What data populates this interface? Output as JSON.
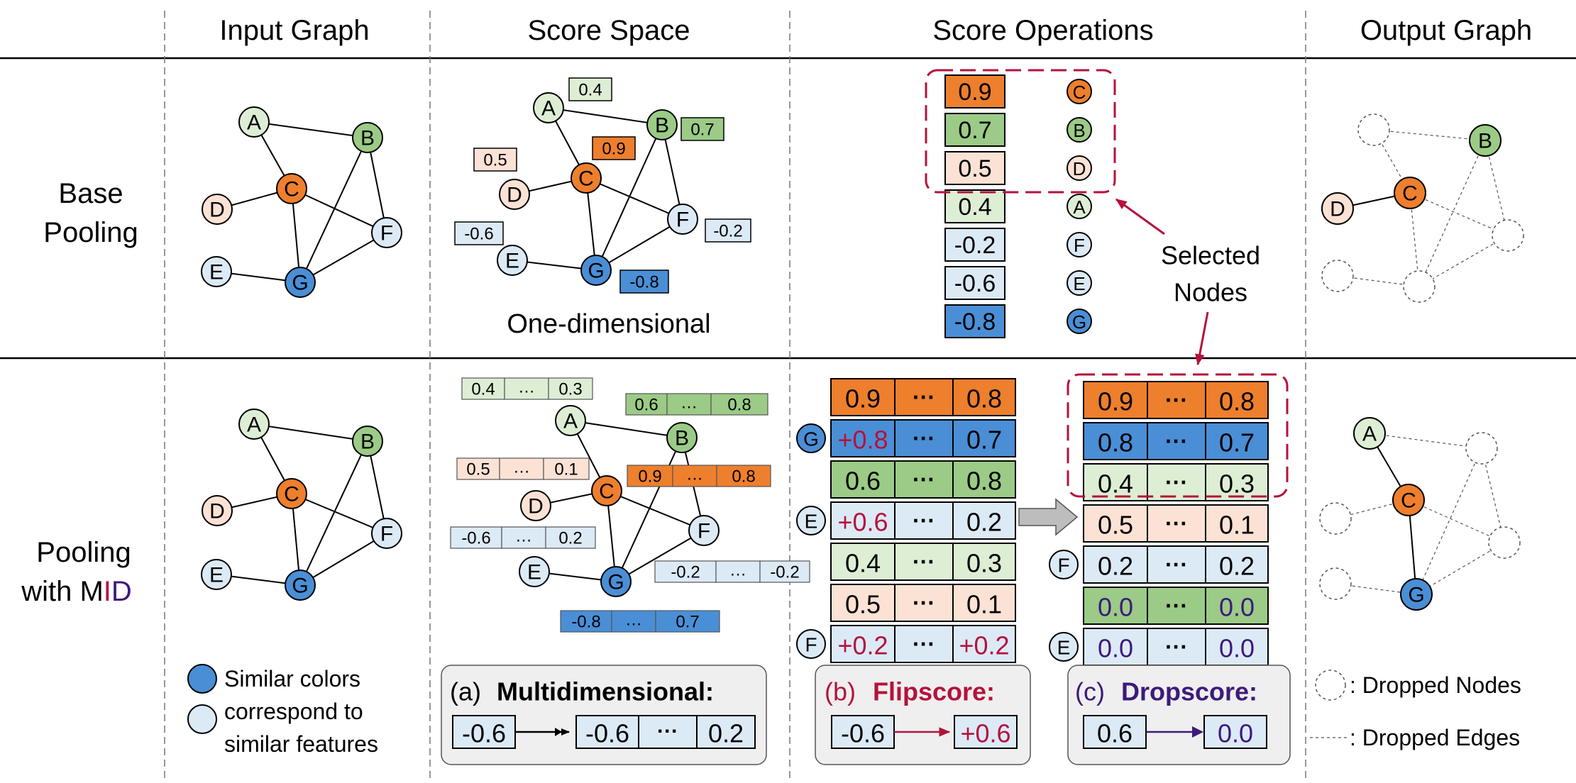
{
  "colors": {
    "orange": "#EE7F2D",
    "green": "#9BCB86",
    "light_green": "#DDEED5",
    "peach": "#FBE2D4",
    "light_blue": "#DCEAF6",
    "blue": "#4A8ED6",
    "flip_red": "#B5123B",
    "drop_purple": "#3D1A7A",
    "selection_red": "#B5123B"
  },
  "headers": {
    "input_graph": "Input Graph",
    "score_space": "Score Space",
    "score_operations": "Score Operations",
    "output_graph": "Output Graph"
  },
  "rows": {
    "base": {
      "line1": "Base",
      "line2": "Pooling"
    },
    "mid": {
      "line1": "Pooling",
      "line2_prefix": "with M",
      "line2_I": "I",
      "line2_D": "D"
    }
  },
  "node_labels": {
    "A": "A",
    "B": "B",
    "C": "C",
    "D": "D",
    "E": "E",
    "F": "F",
    "G": "G"
  },
  "base_scores": {
    "A": "0.4",
    "B": "0.7",
    "C": "0.9",
    "D": "0.5",
    "E": "-0.6",
    "F": "-0.2",
    "G": "-0.8"
  },
  "one_dimensional": "One-dimensional",
  "base_ranked": [
    {
      "score": "0.9",
      "node": "C"
    },
    {
      "score": "0.7",
      "node": "B"
    },
    {
      "score": "0.5",
      "node": "D"
    },
    {
      "score": "0.4",
      "node": "A"
    },
    {
      "score": "-0.2",
      "node": "F"
    },
    {
      "score": "-0.6",
      "node": "E"
    },
    {
      "score": "-0.8",
      "node": "G"
    }
  ],
  "selected_nodes": {
    "line1": "Selected",
    "line2": "Nodes"
  },
  "ellipsis": "…",
  "dots": "···",
  "multi_scores": {
    "A": [
      "0.4",
      "0.3"
    ],
    "B": [
      "0.6",
      "0.8"
    ],
    "D": [
      "0.5",
      "0.1"
    ],
    "C": [
      "0.9",
      "0.8"
    ],
    "E": [
      "-0.6",
      "0.2"
    ],
    "F": [
      "-0.2",
      "-0.2"
    ],
    "G": [
      "-0.8",
      "0.7"
    ]
  },
  "mid_left_rows": [
    {
      "node": "",
      "first": "0.9",
      "last": "0.8"
    },
    {
      "node": "G",
      "first": "+0.8",
      "last": "0.7"
    },
    {
      "node": "",
      "first": "0.6",
      "last": "0.8"
    },
    {
      "node": "E",
      "first": "+0.6",
      "last": "0.2"
    },
    {
      "node": "",
      "first": "0.4",
      "last": "0.3"
    },
    {
      "node": "",
      "first": "0.5",
      "last": "0.1"
    },
    {
      "node": "F",
      "first": "+0.2",
      "last": "+0.2"
    }
  ],
  "mid_right_rows": [
    {
      "node": "",
      "first": "0.9",
      "last": "0.8"
    },
    {
      "node": "",
      "first": "0.8",
      "last": "0.7"
    },
    {
      "node": "",
      "first": "0.4",
      "last": "0.3"
    },
    {
      "node": "",
      "first": "0.5",
      "last": "0.1"
    },
    {
      "node": "F",
      "first": "0.2",
      "last": "0.2"
    },
    {
      "node": "",
      "first": "0.0",
      "last": "0.0"
    },
    {
      "node": "E",
      "first": "0.0",
      "last": "0.0"
    }
  ],
  "legend": {
    "similar_line1": "Similar colors",
    "similar_line2": "correspond to",
    "similar_line3": "similar features",
    "dropped_nodes": ": Dropped Nodes",
    "dropped_edges": ": Dropped Edges"
  },
  "boxes": {
    "a_tag": "(a)",
    "a_title": "Multidimensional:",
    "a_from": "-0.6",
    "a_to_first": "-0.6",
    "a_to_last": "0.2",
    "b_tag": "(b)",
    "b_title": "Flipscore:",
    "b_from": "-0.6",
    "b_to": "+0.6",
    "c_tag": "(c)",
    "c_title": "Dropscore:",
    "c_from": "0.6",
    "c_to": "0.0"
  }
}
